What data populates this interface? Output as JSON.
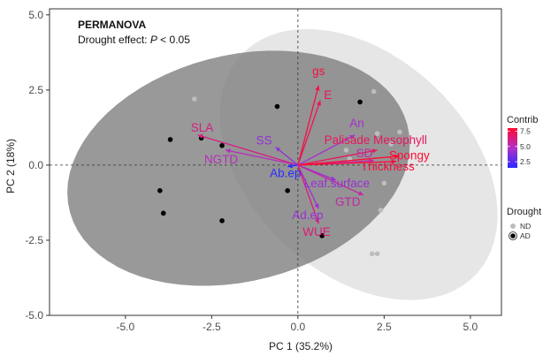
{
  "chart_data": {
    "type": "scatter",
    "subtype": "pca-biplot",
    "annotation": {
      "title": "PERMANOVA",
      "subtitle_prefix": "Drought effect: ",
      "subtitle_p": "P",
      "subtitle_suffix": " < 0.05"
    },
    "xlabel": "PC 1 (35.2%)",
    "ylabel": "PC 2 (18%)",
    "xlim": [
      -7.2,
      5.9
    ],
    "ylim": [
      -5.0,
      5.2
    ],
    "xticks": [
      -5.0,
      -2.5,
      0.0,
      2.5,
      5.0
    ],
    "yticks": [
      -5.0,
      -2.5,
      0.0,
      2.5,
      5.0
    ],
    "tick_labels_x": [
      "-5.0",
      "-2.5",
      "0.0",
      "2.5",
      "5.0"
    ],
    "tick_labels_y": [
      "-5.0",
      "-2.5",
      "0.0",
      "2.5",
      "5.0"
    ],
    "grid": false,
    "groups": [
      {
        "name": "ND",
        "color": "#bdbdbd",
        "ellipse_fill": "#dcdcdc",
        "points": [
          [
            -3.0,
            2.2
          ],
          [
            1.4,
            0.5
          ],
          [
            2.2,
            2.45
          ],
          [
            2.3,
            1.05
          ],
          [
            2.7,
            0.7
          ],
          [
            2.95,
            1.1
          ],
          [
            2.5,
            -0.6
          ],
          [
            2.4,
            -1.5
          ],
          [
            2.15,
            -2.95
          ],
          [
            2.3,
            -2.95
          ],
          [
            1.5,
            0.2
          ]
        ]
      },
      {
        "name": "AD",
        "color": "#000000",
        "ellipse_fill": "#7f7f7f",
        "points": [
          [
            -3.7,
            0.85
          ],
          [
            -2.8,
            0.9
          ],
          [
            -2.2,
            0.65
          ],
          [
            -4.0,
            -0.85
          ],
          [
            -3.9,
            -1.6
          ],
          [
            -2.2,
            -1.85
          ],
          [
            -0.6,
            1.95
          ],
          [
            -0.3,
            -0.85
          ],
          [
            0.7,
            -2.35
          ],
          [
            1.8,
            2.1
          ]
        ]
      }
    ],
    "variables": [
      {
        "name": "gs",
        "x": 0.6,
        "y": 2.65,
        "contrib": 7.6
      },
      {
        "name": "E",
        "x": 0.65,
        "y": 2.15,
        "contrib": 7.2
      },
      {
        "name": "An",
        "x": 1.65,
        "y": 1.0,
        "contrib": 4.5
      },
      {
        "name": "Palisade Mesophyll",
        "x": 2.3,
        "y": 0.5,
        "contrib": 7.0
      },
      {
        "name": "SD",
        "x": 2.2,
        "y": 0.15,
        "contrib": 5.5
      },
      {
        "name": "Spongy",
        "x": 2.95,
        "y": 0.3,
        "contrib": 8.0
      },
      {
        "name": "Thickness",
        "x": 2.85,
        "y": 0.12,
        "contrib": 7.8
      },
      {
        "name": "SLA",
        "x": -2.9,
        "y": 1.0,
        "contrib": 6.3
      },
      {
        "name": "SS",
        "x": -0.65,
        "y": 0.6,
        "contrib": 4.0
      },
      {
        "name": "NGTD",
        "x": -2.1,
        "y": 0.5,
        "contrib": 5.0
      },
      {
        "name": "Ab.ep",
        "x": -0.3,
        "y": -0.05,
        "contrib": 1.5
      },
      {
        "name": "Leaf.surface",
        "x": 1.1,
        "y": -0.5,
        "contrib": 4.2
      },
      {
        "name": "GTD",
        "x": 1.9,
        "y": -1.0,
        "contrib": 5.5
      },
      {
        "name": "Ad.ep",
        "x": 0.6,
        "y": -1.45,
        "contrib": 4.3
      },
      {
        "name": "WUE",
        "x": 0.6,
        "y": -1.95,
        "contrib": 6.5
      }
    ],
    "contrib_scale": {
      "title": "Contrib",
      "min": 1.5,
      "max": 8.0,
      "ticks": [
        2.5,
        5.0,
        7.5
      ],
      "tick_labels": [
        "2.5",
        "5.0",
        "7.5"
      ],
      "low_color": "#2a2aff",
      "mid_color": "#b030c8",
      "high_color": "#ff0a32"
    },
    "shape_legend": {
      "title": "Drought",
      "entries": [
        "ND",
        "AD"
      ]
    }
  }
}
